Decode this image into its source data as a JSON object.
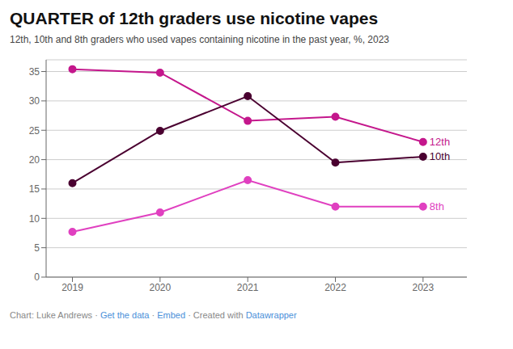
{
  "chart_data": {
    "type": "line",
    "title": "QUARTER of 12th graders use nicotine vapes",
    "subtitle": "12th, 10th and 8th graders who used vapes containing nicotine in the past year, %, 2023",
    "footer": [
      {
        "text": "Chart: Luke Andrews · ",
        "color": "#888888"
      },
      {
        "text": "Get the data",
        "color": "#4a90d9"
      },
      {
        "text": " · ",
        "color": "#888888"
      },
      {
        "text": "Embed",
        "color": "#4a90d9"
      },
      {
        "text": " · Created with ",
        "color": "#888888"
      },
      {
        "text": "Datawrapper",
        "color": "#4a90d9"
      }
    ],
    "x": [
      2019,
      2020,
      2021,
      2022,
      2023
    ],
    "xlim": [
      2018.7,
      2023.5
    ],
    "xticks": [
      2019,
      2020,
      2021,
      2022,
      2023
    ],
    "series": [
      {
        "name": "12th",
        "color": "#c4178c",
        "values": [
          35.4,
          34.8,
          26.6,
          27.3,
          23.0
        ]
      },
      {
        "name": "10th",
        "color": "#4a0030",
        "values": [
          16.0,
          24.9,
          30.8,
          19.5,
          20.5
        ]
      },
      {
        "name": "8th",
        "color": "#e040c0",
        "values": [
          7.7,
          11.0,
          16.5,
          12.0,
          12.0
        ]
      }
    ],
    "ylim": [
      0,
      37
    ],
    "yticks": [
      0,
      5,
      10,
      15,
      20,
      25,
      30,
      35
    ],
    "grid": true,
    "marker": "circle"
  }
}
